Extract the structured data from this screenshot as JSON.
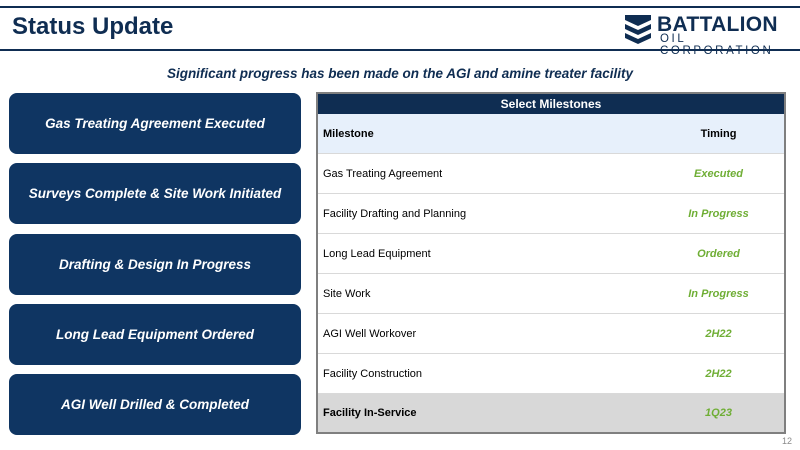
{
  "header": {
    "title": "Status Update",
    "logo_name": "BATTALION",
    "logo_sub": "OIL CORPORATION"
  },
  "subtitle": "Significant progress has been made on the AGI and amine treater facility",
  "status_cards": [
    "Gas Treating Agreement Executed",
    "Surveys Complete & Site Work Initiated",
    "Drafting & Design In Progress",
    "Long Lead Equipment Ordered",
    "AGI Well Drilled & Completed"
  ],
  "milestones": {
    "title": "Select Milestones",
    "col_milestone": "Milestone",
    "col_timing": "Timing",
    "rows": [
      {
        "milestone": "Gas Treating Agreement",
        "timing": "Executed"
      },
      {
        "milestone": "Facility Drafting and Planning",
        "timing": "In Progress"
      },
      {
        "milestone": "Long Lead Equipment",
        "timing": "Ordered"
      },
      {
        "milestone": "Site Work",
        "timing": "In Progress"
      },
      {
        "milestone": "AGI Well Workover",
        "timing": "2H22"
      },
      {
        "milestone": "Facility Construction",
        "timing": "2H22"
      },
      {
        "milestone": "Facility In-Service",
        "timing": "1Q23"
      }
    ]
  },
  "page_number": "12",
  "colors": {
    "navy": "#0f2d52",
    "card": "#0f3562",
    "green": "#6fae35",
    "header_row": "#e7f0fb",
    "final_row": "#d8d8d8"
  }
}
